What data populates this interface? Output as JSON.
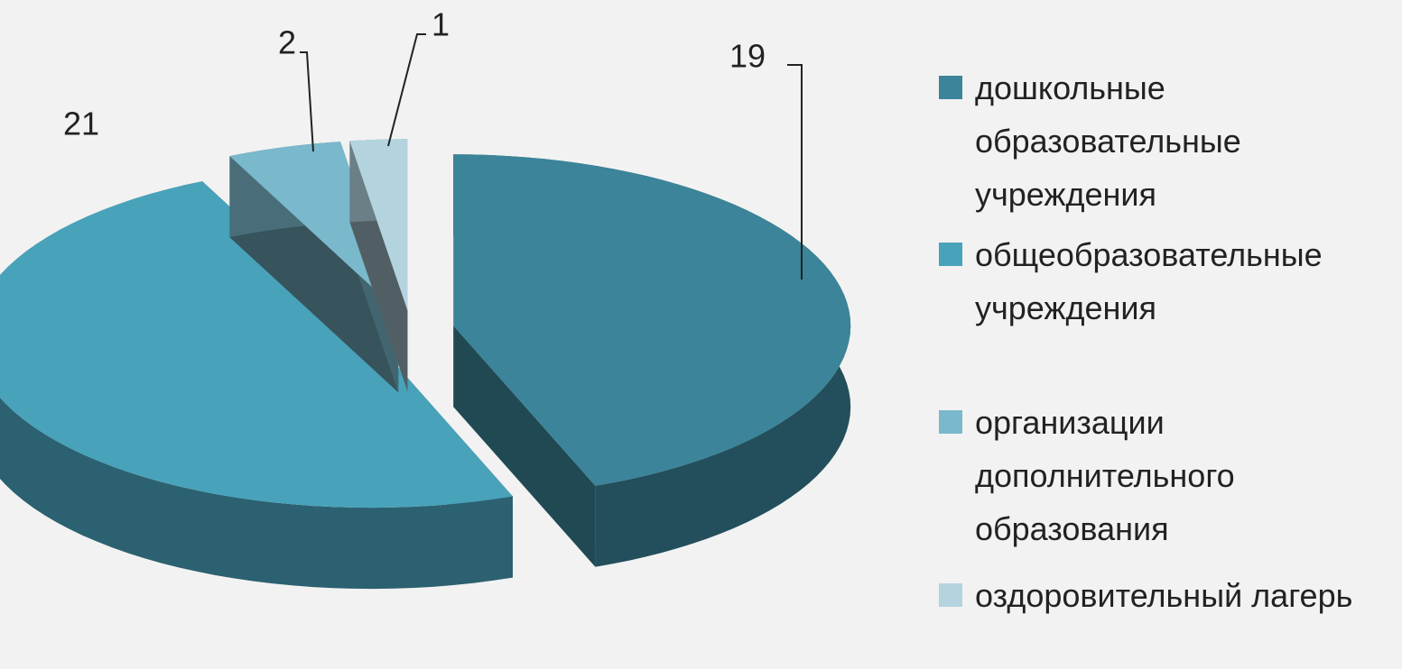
{
  "chart_data": {
    "type": "pie",
    "categories": [
      "дошкольные образовательные учреждения",
      "общеобразовательные учреждения",
      "организации дополнительного образования",
      "оздоровительный лагерь"
    ],
    "values": [
      19,
      21,
      2,
      1
    ],
    "colors": [
      "#3b8499",
      "#48a2ba",
      "#7ab8cc",
      "#b3d4df"
    ]
  }
}
